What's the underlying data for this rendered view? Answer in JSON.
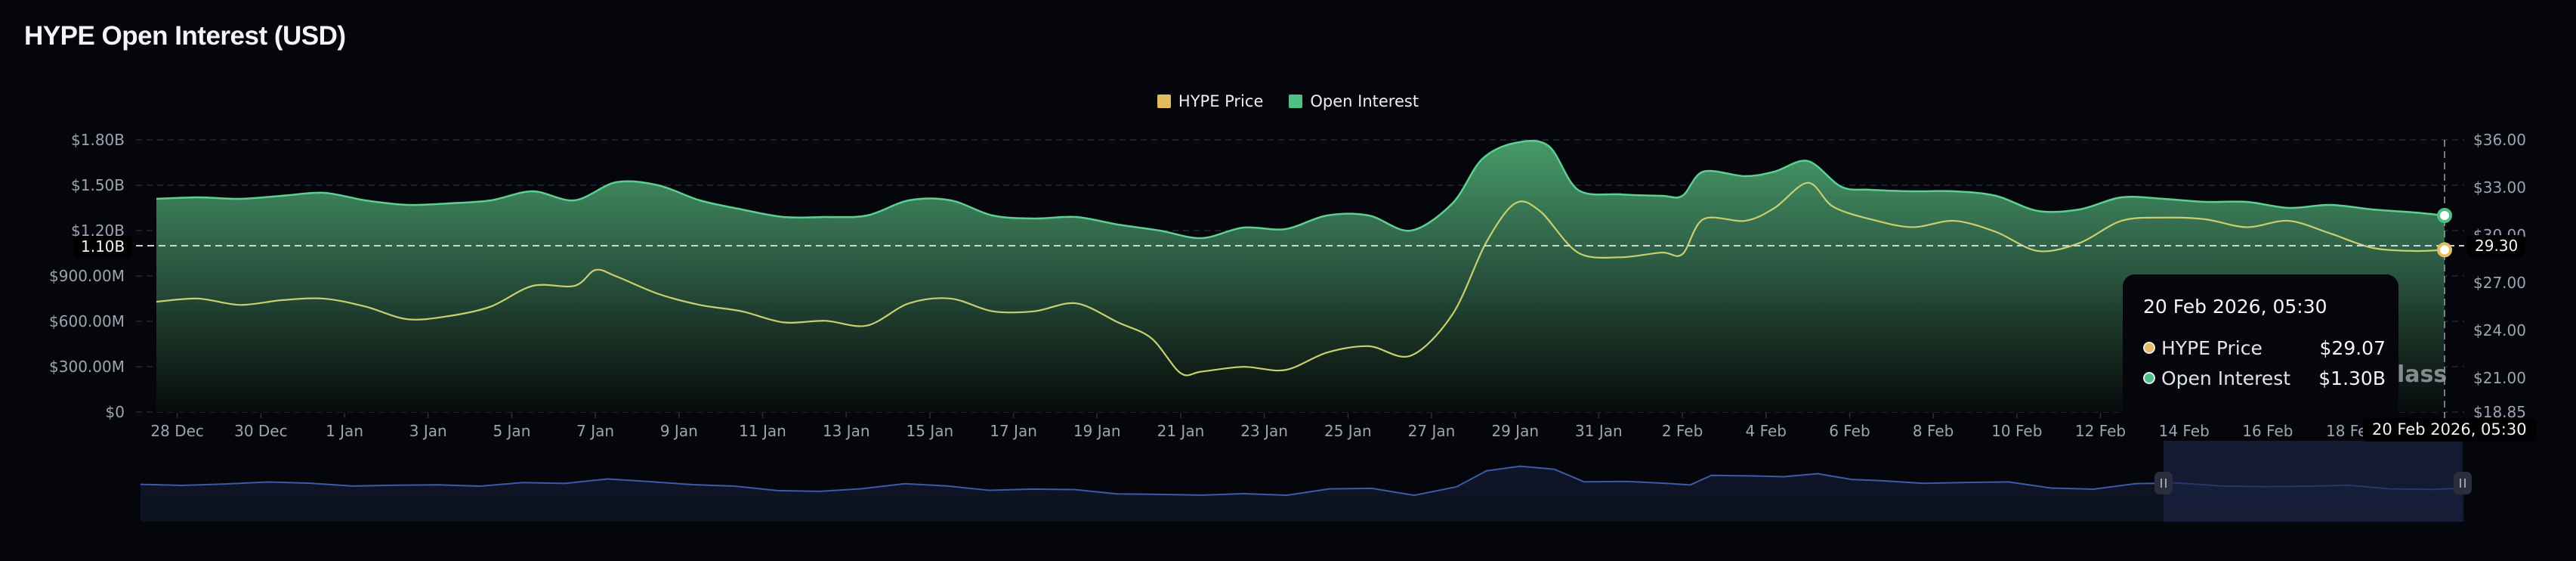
{
  "title": "HYPE Open Interest (USD)",
  "legend": [
    {
      "label": "HYPE Price",
      "color": "#e3bc5f"
    },
    {
      "label": "Open Interest",
      "color": "#4fbf86"
    }
  ],
  "tooltip": {
    "date": "20 Feb 2026, 05:30",
    "rows": [
      {
        "label": "HYPE Price",
        "value": "$29.07",
        "color": "#e3bc5f"
      },
      {
        "label": "Open Interest",
        "value": "$1.30B",
        "color": "#4fbf86"
      }
    ]
  },
  "crosshair": {
    "x_label": "20 Feb 2026, 05:30",
    "left_y_label": "1.10B",
    "right_y_label": "29.30"
  },
  "watermark": "lass",
  "chart_data": {
    "type": "area+line",
    "title": "HYPE Open Interest (USD)",
    "x_unit": "days since 27 Dec 2025 00:00",
    "x_range": [
      0.5,
      55.23
    ],
    "x_ticks": [
      {
        "day": 1,
        "label": "28 Dec"
      },
      {
        "day": 3,
        "label": "30 Dec"
      },
      {
        "day": 5,
        "label": "1 Jan"
      },
      {
        "day": 7,
        "label": "3 Jan"
      },
      {
        "day": 9,
        "label": "5 Jan"
      },
      {
        "day": 11,
        "label": "7 Jan"
      },
      {
        "day": 13,
        "label": "9 Jan"
      },
      {
        "day": 15,
        "label": "11 Jan"
      },
      {
        "day": 17,
        "label": "13 Jan"
      },
      {
        "day": 19,
        "label": "15 Jan"
      },
      {
        "day": 21,
        "label": "17 Jan"
      },
      {
        "day": 23,
        "label": "19 Jan"
      },
      {
        "day": 25,
        "label": "21 Jan"
      },
      {
        "day": 27,
        "label": "23 Jan"
      },
      {
        "day": 29,
        "label": "25 Jan"
      },
      {
        "day": 31,
        "label": "27 Jan"
      },
      {
        "day": 33,
        "label": "29 Jan"
      },
      {
        "day": 35,
        "label": "31 Jan"
      },
      {
        "day": 37,
        "label": "2 Feb"
      },
      {
        "day": 39,
        "label": "4 Feb"
      },
      {
        "day": 41,
        "label": "6 Feb"
      },
      {
        "day": 43,
        "label": "8 Feb"
      },
      {
        "day": 45,
        "label": "10 Feb"
      },
      {
        "day": 47,
        "label": "12 Feb"
      },
      {
        "day": 49,
        "label": "14 Feb"
      },
      {
        "day": 51,
        "label": "16 Feb"
      },
      {
        "day": 53,
        "label": "18 Feb"
      }
    ],
    "left_axis": {
      "name": "Open Interest",
      "unit": "USD billions",
      "range": [
        0,
        1.8
      ],
      "ticks": [
        {
          "value": 0,
          "label": "$0"
        },
        {
          "value": 0.3,
          "label": "$300.00M"
        },
        {
          "value": 0.6,
          "label": "$600.00M"
        },
        {
          "value": 0.9,
          "label": "$900.00M"
        },
        {
          "value": 1.2,
          "label": "$1.20B"
        },
        {
          "value": 1.5,
          "label": "$1.50B"
        },
        {
          "value": 1.8,
          "label": "$1.80B"
        }
      ]
    },
    "right_axis": {
      "name": "HYPE Price",
      "unit": "USD",
      "range": [
        18.85,
        36.0
      ],
      "ticks": [
        {
          "value": 18.85,
          "label": "$18.85"
        },
        {
          "value": 21,
          "label": "$21.00"
        },
        {
          "value": 24,
          "label": "$24.00"
        },
        {
          "value": 27,
          "label": "$27.00"
        },
        {
          "value": 30,
          "label": "$30.00"
        },
        {
          "value": 33,
          "label": "$33.00"
        },
        {
          "value": 36,
          "label": "$36.00"
        }
      ]
    },
    "grid": true,
    "legend_position": "top-center",
    "series": [
      {
        "name": "Open Interest",
        "type": "area",
        "axis": "left",
        "color": "#4fbf86",
        "x": [
          0.5,
          1.5,
          2.5,
          3.5,
          4.5,
          5.5,
          6.5,
          7.5,
          8.5,
          9.5,
          10.5,
          11.5,
          12.5,
          13.5,
          14.5,
          15.5,
          16.5,
          17.5,
          18.5,
          19.5,
          20.5,
          21.5,
          22.5,
          23.5,
          24.5,
          25.5,
          26.5,
          27.5,
          28.5,
          29.5,
          30.5,
          31.5,
          32.2,
          33.0,
          33.8,
          34.5,
          35.5,
          36.5,
          37.0,
          37.5,
          38.5,
          39.2,
          40.0,
          40.8,
          41.5,
          42.5,
          43.5,
          44.5,
          45.5,
          46.5,
          47.5,
          48.5,
          49.5,
          50.5,
          51.5,
          52.5,
          53.5,
          54.5,
          55.23
        ],
        "values": [
          1.41,
          1.42,
          1.41,
          1.43,
          1.45,
          1.4,
          1.37,
          1.38,
          1.4,
          1.46,
          1.4,
          1.52,
          1.5,
          1.4,
          1.34,
          1.29,
          1.29,
          1.3,
          1.4,
          1.4,
          1.3,
          1.28,
          1.29,
          1.24,
          1.2,
          1.15,
          1.22,
          1.21,
          1.3,
          1.3,
          1.2,
          1.38,
          1.67,
          1.78,
          1.76,
          1.47,
          1.44,
          1.43,
          1.43,
          1.59,
          1.56,
          1.59,
          1.66,
          1.49,
          1.47,
          1.46,
          1.46,
          1.43,
          1.33,
          1.34,
          1.42,
          1.41,
          1.39,
          1.39,
          1.35,
          1.37,
          1.34,
          1.32,
          1.3
        ]
      },
      {
        "name": "HYPE Price",
        "type": "line",
        "axis": "right",
        "color": "#e3bc5f",
        "x": [
          0.5,
          1.5,
          2.5,
          3.5,
          4.5,
          5.5,
          6.5,
          7.5,
          8.5,
          9.5,
          10.5,
          11.0,
          11.5,
          12.5,
          13.5,
          14.5,
          15.5,
          16.5,
          17.5,
          18.5,
          19.5,
          20.5,
          21.5,
          22.5,
          23.5,
          24.3,
          25.0,
          25.5,
          26.5,
          27.5,
          28.5,
          29.5,
          30.5,
          31.5,
          32.3,
          33.0,
          33.6,
          34.5,
          35.5,
          36.5,
          37.0,
          37.5,
          38.5,
          39.2,
          40.0,
          40.6,
          41.5,
          42.5,
          43.5,
          44.5,
          45.5,
          46.5,
          47.5,
          48.5,
          49.5,
          50.5,
          51.5,
          52.5,
          53.5,
          54.5,
          55.23
        ],
        "values": [
          25.8,
          26.0,
          25.6,
          25.9,
          26.0,
          25.5,
          24.7,
          24.9,
          25.5,
          26.8,
          26.8,
          27.8,
          27.4,
          26.3,
          25.6,
          25.2,
          24.5,
          24.6,
          24.3,
          25.7,
          26.0,
          25.2,
          25.2,
          25.7,
          24.5,
          23.5,
          21.3,
          21.4,
          21.7,
          21.5,
          22.6,
          23.0,
          22.4,
          25.0,
          29.5,
          32.0,
          31.5,
          28.9,
          28.6,
          28.9,
          28.8,
          31.0,
          30.9,
          31.7,
          33.3,
          31.8,
          31.0,
          30.5,
          30.9,
          30.2,
          29.0,
          29.5,
          30.9,
          31.1,
          31.0,
          30.5,
          30.9,
          30.1,
          29.2,
          29.0,
          29.07
        ]
      }
    ],
    "navigator": {
      "series": "Open Interest",
      "selected_range": [
        "13 Feb",
        "20 Feb 2026, 05:30"
      ]
    }
  }
}
